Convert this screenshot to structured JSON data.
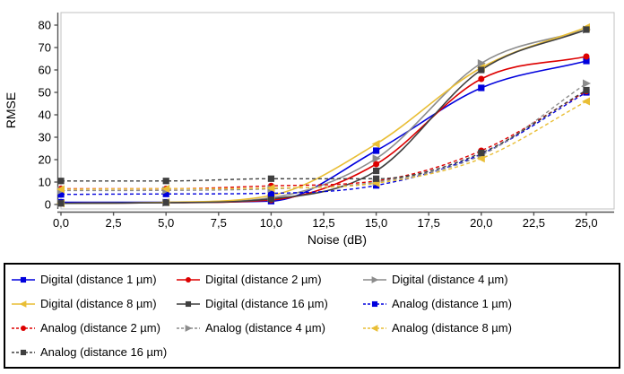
{
  "colors": {
    "blue": "#0000dd",
    "red": "#dd0000",
    "gray": "#8c8c8c",
    "yellow": "#e9be35",
    "dark_gray": "#3f3f3f",
    "plot_border": "#c0c0c0",
    "axis_line": "#555555",
    "text": "#000000",
    "background": "#ffffff"
  },
  "chart_data": {
    "type": "line",
    "title": "",
    "xlabel": "Noise (dB)",
    "ylabel": "RMSE",
    "grid": false,
    "legend_position": "bottom",
    "xlim": [
      0,
      25
    ],
    "ylim": [
      0,
      80
    ],
    "x_tick_values": [
      0,
      2.5,
      5,
      7.5,
      10,
      12.5,
      15,
      17.5,
      20,
      22.5,
      25
    ],
    "x_tick_labels": [
      "0,0",
      "2,5",
      "5,0",
      "7,5",
      "10,0",
      "12,5",
      "15,0",
      "17,5",
      "20,0",
      "22,5",
      "25,0"
    ],
    "y_tick_values": [
      0,
      10,
      20,
      30,
      40,
      50,
      60,
      70,
      80
    ],
    "y_tick_labels": [
      "0",
      "10",
      "20",
      "30",
      "40",
      "50",
      "60",
      "70",
      "80"
    ],
    "x": [
      0,
      5,
      10,
      15,
      20,
      25
    ],
    "series": [
      {
        "name": "Digital (distance 1 µm)",
        "color": "#0000dd",
        "marker": "square",
        "line": "solid",
        "values": [
          1,
          1,
          1.5,
          24,
          52,
          64
        ]
      },
      {
        "name": "Digital (distance 2 µm)",
        "color": "#dd0000",
        "marker": "circle",
        "line": "solid",
        "values": [
          0.5,
          0.8,
          2,
          18,
          56,
          66
        ]
      },
      {
        "name": "Digital (distance 4 µm)",
        "color": "#8c8c8c",
        "marker": "triangle-right",
        "line": "solid",
        "values": [
          0.5,
          0.8,
          3,
          20.5,
          63,
          78
        ]
      },
      {
        "name": "Digital (distance 8 µm)",
        "color": "#e9be35",
        "marker": "triangle-left",
        "line": "solid",
        "values": [
          0.5,
          1,
          4,
          27,
          61,
          79
        ]
      },
      {
        "name": "Digital (distance 16 µm)",
        "color": "#3f3f3f",
        "marker": "square",
        "line": "solid",
        "values": [
          0.5,
          0.8,
          2.5,
          15,
          60,
          78
        ]
      },
      {
        "name": "Analog (distance 1 µm)",
        "color": "#0000dd",
        "marker": "square",
        "line": "dashed",
        "values": [
          4.5,
          4.7,
          5,
          8.5,
          22.5,
          50
        ]
      },
      {
        "name": "Analog (distance 2 µm)",
        "color": "#dd0000",
        "marker": "circle",
        "line": "dashed",
        "values": [
          7,
          7,
          8.3,
          10.5,
          24,
          50.5
        ]
      },
      {
        "name": "Analog (distance 4 µm)",
        "color": "#8c8c8c",
        "marker": "triangle-right",
        "line": "dashed",
        "values": [
          6.2,
          6.3,
          7,
          10,
          22,
          54
        ]
      },
      {
        "name": "Analog (distance 8 µm)",
        "color": "#e9be35",
        "marker": "triangle-left",
        "line": "dashed",
        "values": [
          6.8,
          7,
          7.3,
          9.5,
          20.5,
          46
        ]
      },
      {
        "name": "Analog (distance 16 µm)",
        "color": "#3f3f3f",
        "marker": "square",
        "line": "dashed",
        "values": [
          10.5,
          10.5,
          11.5,
          11.5,
          23,
          51
        ]
      }
    ]
  }
}
